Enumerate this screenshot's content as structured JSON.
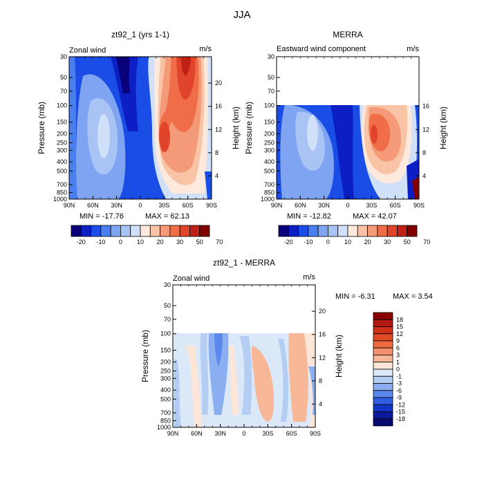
{
  "page_title": "JJA",
  "chart_data": [
    {
      "type": "heatmap",
      "title": "zt92_1 (yrs 1-1)",
      "subtitle": "Zonal wind",
      "units": "m/s",
      "xlabel": "",
      "ylabel": "Pressure (mb)",
      "y2label": "Height (km)",
      "x_ticks": [
        "90N",
        "60N",
        "30N",
        "0",
        "30S",
        "60S",
        "90S"
      ],
      "y_ticks": [
        "30",
        "50",
        "70",
        "100",
        "150",
        "200",
        "250",
        "300",
        "400",
        "500",
        "700",
        "850",
        "1000"
      ],
      "y2_ticks": [
        "20",
        "16",
        "12",
        "8",
        "4"
      ],
      "min_label": "MIN = -17.76",
      "max_label": "MAX = 62.13",
      "colorbar_labels": [
        "-20",
        "-10",
        "0",
        "10",
        "20",
        "30",
        "50",
        "70"
      ],
      "colorbar_colors": [
        "#08007a",
        "#0b1fc4",
        "#1a4de6",
        "#4a7ff0",
        "#7fa4f2",
        "#a9c3f5",
        "#d0e0f8",
        "#ffe9dc",
        "#f9c3a6",
        "#f59a78",
        "#ef6e48",
        "#e0442a",
        "#c02015",
        "#800000"
      ]
    },
    {
      "type": "heatmap",
      "title": "MERRA",
      "subtitle": "Eastward wind component",
      "units": "m/s",
      "xlabel": "",
      "ylabel": "Pressure (mb)",
      "y2label": "Height (km)",
      "x_ticks": [
        "90N",
        "60N",
        "30N",
        "0",
        "30S",
        "60S",
        "90S"
      ],
      "y_ticks": [
        "30",
        "50",
        "70",
        "100",
        "150",
        "200",
        "250",
        "300",
        "400",
        "500",
        "700",
        "850",
        "1000"
      ],
      "y2_ticks": [
        "16",
        "12",
        "8",
        "4"
      ],
      "min_label": "MIN = -12.82",
      "max_label": "MAX = 42.07",
      "colorbar_labels": [
        "-20",
        "-10",
        "0",
        "10",
        "20",
        "30",
        "50",
        "70"
      ]
    },
    {
      "type": "heatmap",
      "title": "zt92_1 - MERRA",
      "subtitle": "Zonal wind",
      "units": "m/s",
      "xlabel": "",
      "ylabel": "Pressure (mb)",
      "y2label": "Height (km)",
      "x_ticks": [
        "90N",
        "60N",
        "30N",
        "0",
        "30S",
        "60S",
        "90S"
      ],
      "y_ticks": [
        "30",
        "50",
        "70",
        "100",
        "150",
        "200",
        "250",
        "300",
        "400",
        "500",
        "700",
        "850",
        "1000"
      ],
      "y2_ticks": [
        "20",
        "16",
        "12",
        "8",
        "4"
      ],
      "min_label": "MIN =  -6.31",
      "max_label": "MAX =   3.54",
      "colorbar_labels": [
        "18",
        "15",
        "12",
        "9",
        "6",
        "3",
        "1",
        "0",
        "-1",
        "-3",
        "-6",
        "-9",
        "-12",
        "-15",
        "-18"
      ],
      "colorbar_colors": [
        "#8b0000",
        "#b01a10",
        "#cc3018",
        "#e04a28",
        "#ef6a40",
        "#f59070",
        "#f8b898",
        "#fde6d8",
        "#dbe8f8",
        "#b3cdf3",
        "#8aaef0",
        "#5a88ec",
        "#2f5ee2",
        "#1336c8",
        "#0a1a9a",
        "#060a6e"
      ]
    }
  ]
}
